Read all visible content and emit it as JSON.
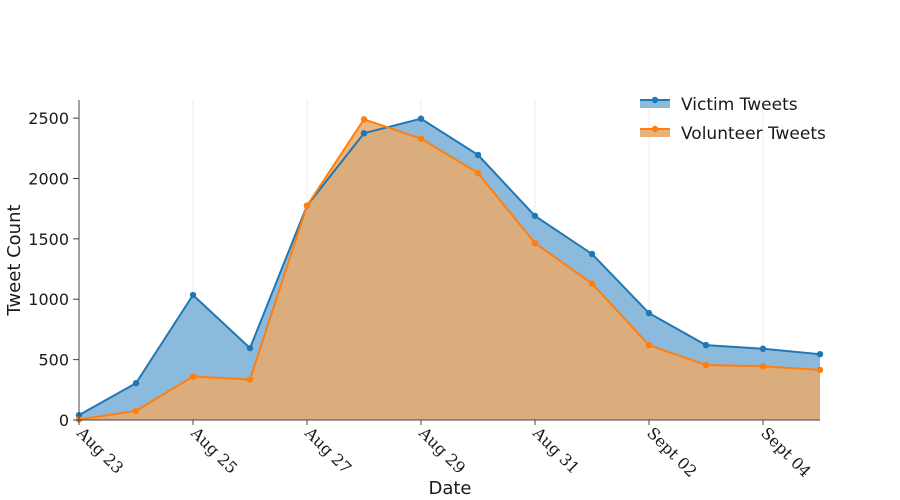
{
  "chart_data": {
    "type": "area",
    "x": [
      "Aug 23",
      "Aug 24",
      "Aug 25",
      "Aug 26",
      "Aug 27",
      "Aug 28",
      "Aug 29",
      "Aug 30",
      "Aug 31",
      "Sept 01",
      "Sept 02",
      "Sept 03",
      "Sept 04",
      "Sept 05"
    ],
    "tick_labels": [
      "Aug 23",
      "Aug 25",
      "Aug 27",
      "Aug 29",
      "Aug 31",
      "Sept 02",
      "Sept 04"
    ],
    "series": [
      {
        "name": "Victim Tweets",
        "color": "#1f77b4",
        "fill": "#7fb2d9",
        "values": [
          40,
          305,
          1035,
          595,
          1775,
          2375,
          2495,
          2195,
          1690,
          1375,
          885,
          620,
          590,
          545
        ]
      },
      {
        "name": "Volunteer Tweets",
        "color": "#ff7f0e",
        "fill": "#e9a96b",
        "values": [
          5,
          75,
          360,
          335,
          1775,
          2490,
          2330,
          2045,
          1465,
          1130,
          620,
          455,
          445,
          415
        ]
      }
    ],
    "xlabel": "Date",
    "ylabel": "Tweet Count",
    "ylim": [
      0,
      2650
    ],
    "yticks": [
      0,
      500,
      1000,
      1500,
      2000,
      2500
    ],
    "grid": "vertical",
    "legend_position": "top-right"
  }
}
